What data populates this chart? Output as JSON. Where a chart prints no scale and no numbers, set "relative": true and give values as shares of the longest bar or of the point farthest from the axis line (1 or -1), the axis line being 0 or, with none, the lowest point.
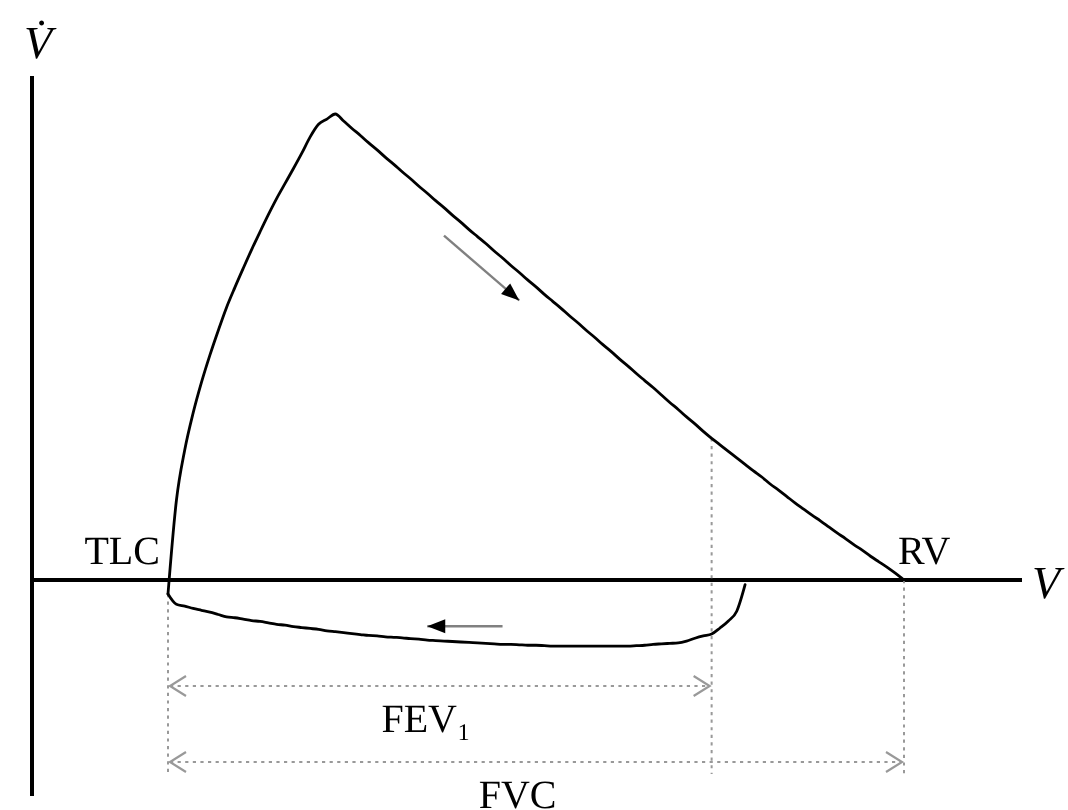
{
  "chart_data": {
    "type": "line",
    "relative": true,
    "xlabel": "V",
    "ylabel": "V̇",
    "categories": [
      null,
      null,
      null,
      null,
      null,
      null,
      null,
      null,
      null,
      null,
      null,
      null,
      null,
      null,
      null,
      null,
      null,
      null,
      null,
      null,
      null,
      null,
      null,
      null,
      null,
      null,
      null,
      null,
      null,
      null,
      null,
      null,
      null,
      null,
      null,
      null,
      null,
      null,
      null,
      null,
      null,
      null,
      null,
      null,
      null,
      null,
      null,
      null,
      null,
      null,
      null,
      null,
      null,
      null,
      null,
      null,
      null,
      null,
      null,
      null,
      null,
      null,
      null,
      null,
      null,
      null,
      null,
      null,
      null,
      null,
      null,
      null,
      null,
      null,
      null,
      null,
      null,
      null,
      null,
      null,
      null,
      null,
      null,
      null,
      null,
      null,
      null,
      null,
      null
    ],
    "series": [
      {
        "color": "#000000",
        "values": [
          -0.03,
          0.17,
          0.279,
          0.358,
          0.424,
          0.482,
          0.535,
          0.585,
          0.628,
          0.669,
          0.709,
          0.747,
          0.784,
          0.819,
          0.851,
          0.883,
          0.916,
          0.951,
          0.978,
          0.989,
          1,
          0.985,
          0.969,
          0.954,
          0.938,
          0.923,
          0.907,
          0.892,
          0.876,
          0.861,
          0.845,
          0.83,
          0.814,
          0.799,
          0.783,
          0.768,
          0.752,
          0.737,
          0.722,
          0.706,
          0.691,
          0.675,
          0.66,
          0.644,
          0.629,
          0.613,
          0.598,
          0.583,
          0.567,
          0.552,
          0.536,
          0.521,
          0.505,
          0.49,
          0.474,
          0.459,
          0.443,
          0.428,
          0.413,
          0.397,
          0.381,
          0.366,
          0.35,
          0.335,
          0.319,
          0.304,
          0.29,
          0.276,
          0.262,
          0.248,
          0.234,
          0.221,
          0.206,
          0.193,
          0.179,
          0.165,
          0.152,
          0.139,
          0.127,
          0.114,
          0.101,
          0.089,
          0.076,
          0.064,
          0.051,
          0.039,
          0.027,
          0.014,
          0
        ]
      },
      {
        "color": "#000000",
        "values": [
          -0.03,
          -0.052,
          -0.056,
          -0.061,
          -0.065,
          -0.069,
          -0.074,
          -0.079,
          -0.081,
          -0.084,
          -0.087,
          -0.089,
          -0.092,
          -0.095,
          -0.097,
          -0.1,
          -0.102,
          -0.104,
          -0.106,
          -0.109,
          -0.111,
          -0.113,
          -0.115,
          -0.117,
          -0.119,
          -0.12,
          -0.122,
          -0.123,
          -0.124,
          -0.126,
          -0.127,
          -0.129,
          -0.13,
          -0.131,
          -0.132,
          -0.133,
          -0.134,
          -0.135,
          -0.136,
          -0.137,
          -0.138,
          -0.138,
          -0.139,
          -0.14,
          -0.14,
          -0.141,
          -0.142,
          -0.142,
          -0.142,
          -0.142,
          -0.142,
          -0.142,
          -0.142,
          -0.142,
          -0.142,
          -0.142,
          -0.141,
          -0.14,
          -0.138,
          -0.137,
          -0.136,
          -0.135,
          -0.131,
          -0.125,
          -0.12,
          -0.116,
          -0.103,
          -0.088,
          -0.067,
          -0.01,
          null,
          null,
          null,
          null,
          null,
          null,
          null,
          null,
          null,
          null,
          null,
          null,
          null,
          null,
          null,
          null,
          null,
          null,
          null
        ]
      }
    ],
    "annotations": [
      "TLC",
      "RV",
      "FEV₁",
      "FVC"
    ]
  }
}
